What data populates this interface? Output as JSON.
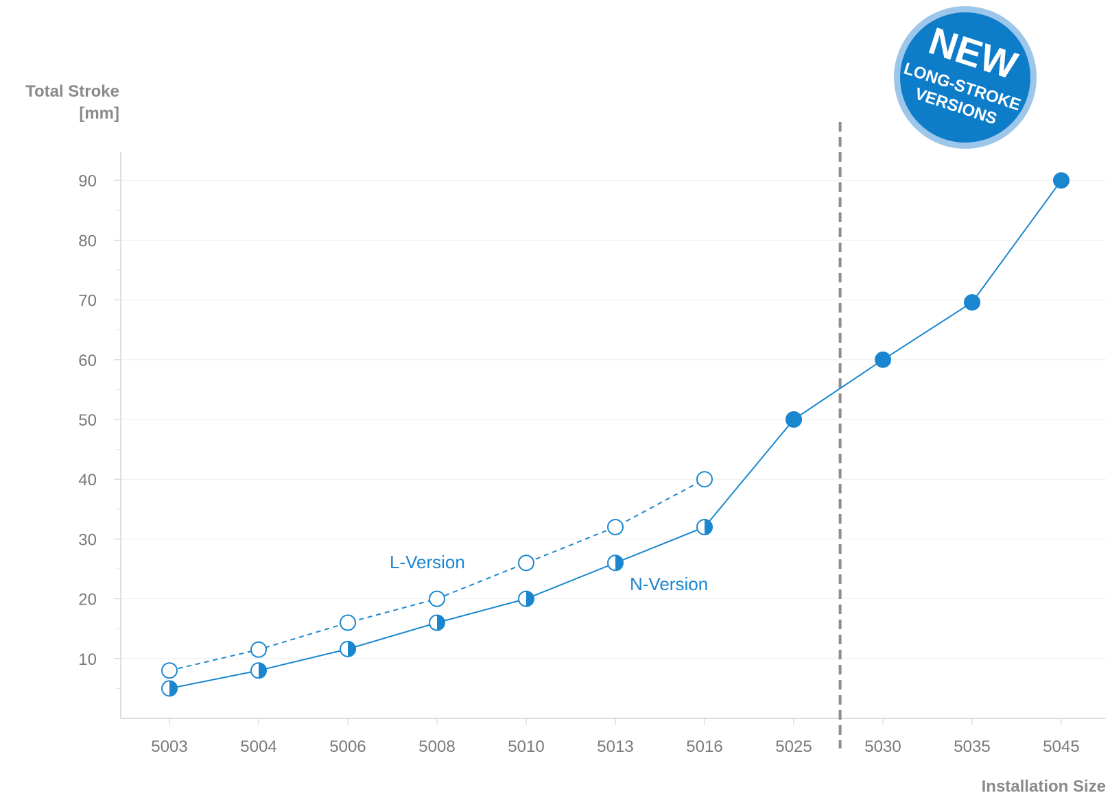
{
  "chart_data": {
    "type": "line",
    "title": "",
    "xlabel": "Installation Size",
    "ylabel_line1": "Total Stroke",
    "ylabel_line2": "[mm]",
    "categories": [
      "5003",
      "5004",
      "5006",
      "5008",
      "5010",
      "5013",
      "5016",
      "5025",
      "5030",
      "5035",
      "5045"
    ],
    "y_ticks": [
      10,
      20,
      30,
      40,
      50,
      60,
      70,
      80,
      90
    ],
    "ylim": [
      0,
      95
    ],
    "grid": true,
    "series": [
      {
        "name": "L-Version",
        "style": "dashed",
        "marker": "open-circle",
        "values": [
          8,
          11.5,
          16,
          20,
          26,
          32,
          40,
          null,
          null,
          null,
          null
        ]
      },
      {
        "name": "N-Version",
        "style": "solid",
        "marker": "half-filled-circle",
        "values": [
          5,
          8,
          11.6,
          16,
          20,
          26,
          32,
          50,
          null,
          null,
          null
        ]
      },
      {
        "name": "",
        "style": "solid",
        "marker": "filled-circle",
        "values": [
          null,
          null,
          null,
          null,
          null,
          null,
          null,
          50,
          60,
          69.6,
          90
        ]
      }
    ],
    "divider_between": [
      "5025",
      "5030"
    ],
    "badge": {
      "line1": "NEW",
      "line2": "LONG-STROKE",
      "line3": "VERSIONS"
    },
    "colors": {
      "accent": "#1a86d0",
      "badge_fill": "#0d7cc9",
      "axis_text": "#7a7a7a",
      "grid": "#eeeeee",
      "divider": "#8c8c8c"
    }
  }
}
